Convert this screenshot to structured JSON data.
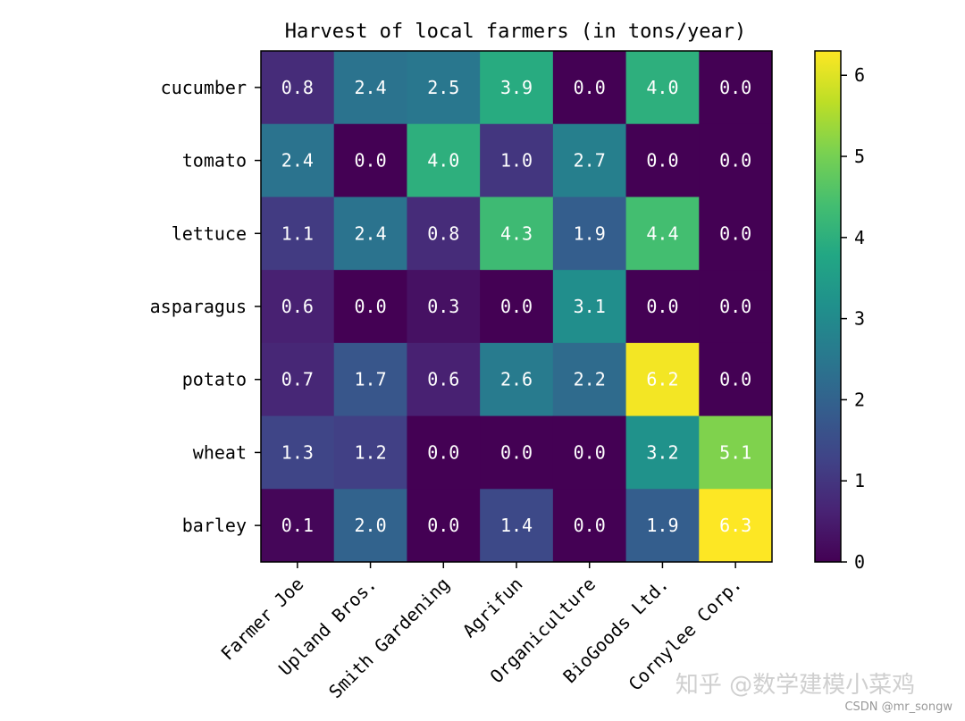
{
  "chart_data": {
    "type": "heatmap",
    "title": "Harvest of local farmers (in tons/year)",
    "x_categories": [
      "Farmer Joe",
      "Upland Bros.",
      "Smith Gardening",
      "Agrifun",
      "Organiculture",
      "BioGoods Ltd.",
      "Cornylee Corp."
    ],
    "y_categories": [
      "cucumber",
      "tomato",
      "lettuce",
      "asparagus",
      "potato",
      "wheat",
      "barley"
    ],
    "values": [
      [
        0.8,
        2.4,
        2.5,
        3.9,
        0.0,
        4.0,
        0.0
      ],
      [
        2.4,
        0.0,
        4.0,
        1.0,
        2.7,
        0.0,
        0.0
      ],
      [
        1.1,
        2.4,
        0.8,
        4.3,
        1.9,
        4.4,
        0.0
      ],
      [
        0.6,
        0.0,
        0.3,
        0.0,
        3.1,
        0.0,
        0.0
      ],
      [
        0.7,
        1.7,
        0.6,
        2.6,
        2.2,
        6.2,
        0.0
      ],
      [
        1.3,
        1.2,
        0.0,
        0.0,
        0.0,
        3.2,
        5.1
      ],
      [
        0.1,
        2.0,
        0.0,
        1.4,
        0.0,
        1.9,
        6.3
      ]
    ],
    "value_range": [
      0,
      6.3
    ],
    "colormap": "viridis",
    "colorbar": {
      "ticks": [
        "0",
        "1",
        "2",
        "3",
        "4",
        "5",
        "6"
      ],
      "placement": "right"
    },
    "grid": false
  },
  "watermark": {
    "zhihu": "知乎 @数学建模小菜鸡",
    "csdn": "CSDN @mr_songw"
  }
}
